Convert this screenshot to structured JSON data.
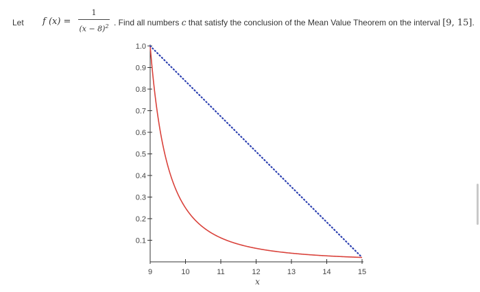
{
  "question": {
    "prefix": "Let",
    "function_name": "f (x) =",
    "numerator": "1",
    "denominator": "(x − 8)",
    "exponent": "2",
    "text_before_c": ". Find all numbers ",
    "variable_c": "c",
    "text_after_c": " that satisfy the conclusion of the Mean Value Theorem on the interval ",
    "interval": "[9,  15]",
    "suffix": "."
  },
  "chart_data": {
    "type": "line",
    "title": "",
    "xlabel": "x",
    "ylabel": "",
    "xlim": [
      9,
      15
    ],
    "ylim": [
      0,
      1.0
    ],
    "x_ticks": [
      "9",
      "10",
      "11",
      "12",
      "13",
      "14",
      "15"
    ],
    "y_ticks": [
      "0.1",
      "0.2",
      "0.3",
      "0.4",
      "0.5",
      "0.6",
      "0.7",
      "0.8",
      "0.9",
      "1.0"
    ],
    "series": [
      {
        "function": "1/(x-8)^2",
        "style": "solid",
        "color": "#d9413a",
        "x": [
          9,
          9.1,
          9.2,
          9.3,
          9.4,
          9.5,
          9.6,
          9.8,
          10,
          10.25,
          10.5,
          10.75,
          11,
          11.5,
          12,
          12.5,
          13,
          13.5,
          14,
          14.5,
          15
        ],
        "y": [
          1.0,
          0.8264,
          0.6944,
          0.5917,
          0.5102,
          0.4444,
          0.3906,
          0.3086,
          0.25,
          0.1975,
          0.16,
          0.1322,
          0.1111,
          0.0816,
          0.0625,
          0.0494,
          0.04,
          0.0331,
          0.0278,
          0.0237,
          0.0204
        ]
      },
      {
        "function": "secant line",
        "style": "dotted",
        "color": "#2b3fb0",
        "x": [
          9,
          15
        ],
        "y": [
          1.0,
          0.0204
        ]
      }
    ],
    "grid": false,
    "legend": "none"
  }
}
